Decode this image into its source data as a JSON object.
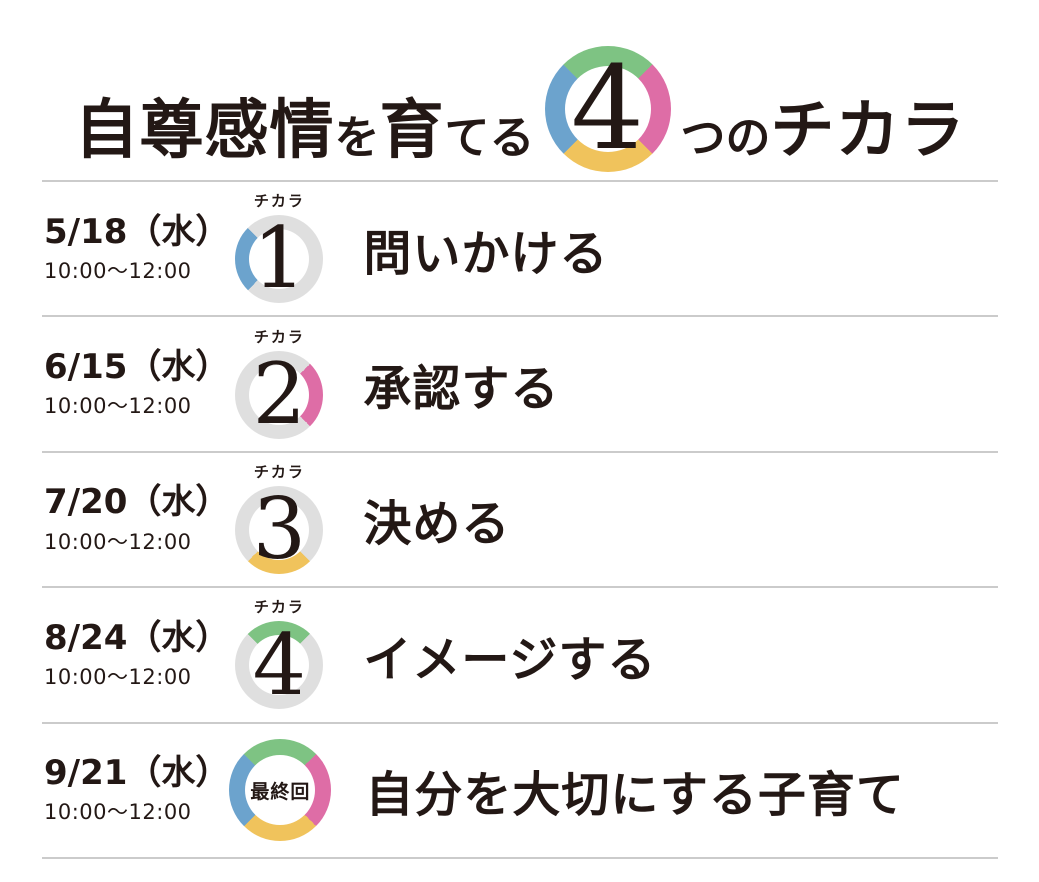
{
  "colors": {
    "green": "#7EC383",
    "pink": "#DE6DA6",
    "yellow": "#F0C35C",
    "blue": "#6CA3CD",
    "gray": "#DFDFDF",
    "divider": "#CBCBCB",
    "text": "#231815"
  },
  "header": {
    "title_prefix_large": "自尊感情",
    "title_prefix_small": "を",
    "title_mid_large": "育",
    "title_mid_small": "てる",
    "ring_number": "4",
    "title_suffix_small": "つの",
    "title_suffix_large": "チカラ",
    "ring_segments": {
      "top": "green",
      "right": "pink",
      "bottom": "yellow",
      "left": "blue"
    }
  },
  "sessions": [
    {
      "date": "5/18（水）",
      "time": "10:00～12:00",
      "badge_label": "チカラ",
      "number": "1",
      "final_label": "",
      "title": "問いかける",
      "segments": {
        "top": "gray",
        "right": "gray",
        "bottom": "gray",
        "left": "blue"
      }
    },
    {
      "date": "6/15（水）",
      "time": "10:00～12:00",
      "badge_label": "チカラ",
      "number": "2",
      "final_label": "",
      "title": "承認する",
      "segments": {
        "top": "gray",
        "right": "pink",
        "bottom": "gray",
        "left": "gray"
      }
    },
    {
      "date": "7/20（水）",
      "time": "10:00～12:00",
      "badge_label": "チカラ",
      "number": "3",
      "final_label": "",
      "title": "決める",
      "segments": {
        "top": "gray",
        "right": "gray",
        "bottom": "yellow",
        "left": "gray"
      }
    },
    {
      "date": "8/24（水）",
      "time": "10:00～12:00",
      "badge_label": "チカラ",
      "number": "4",
      "final_label": "",
      "title": "イメージする",
      "segments": {
        "top": "green",
        "right": "gray",
        "bottom": "gray",
        "left": "gray"
      }
    },
    {
      "date": "9/21（水）",
      "time": "10:00～12:00",
      "badge_label": "",
      "number": "",
      "final_label": "最終回",
      "title": "自分を大切にする子育て",
      "segments": {
        "top": "green",
        "right": "pink",
        "bottom": "yellow",
        "left": "blue"
      }
    }
  ]
}
